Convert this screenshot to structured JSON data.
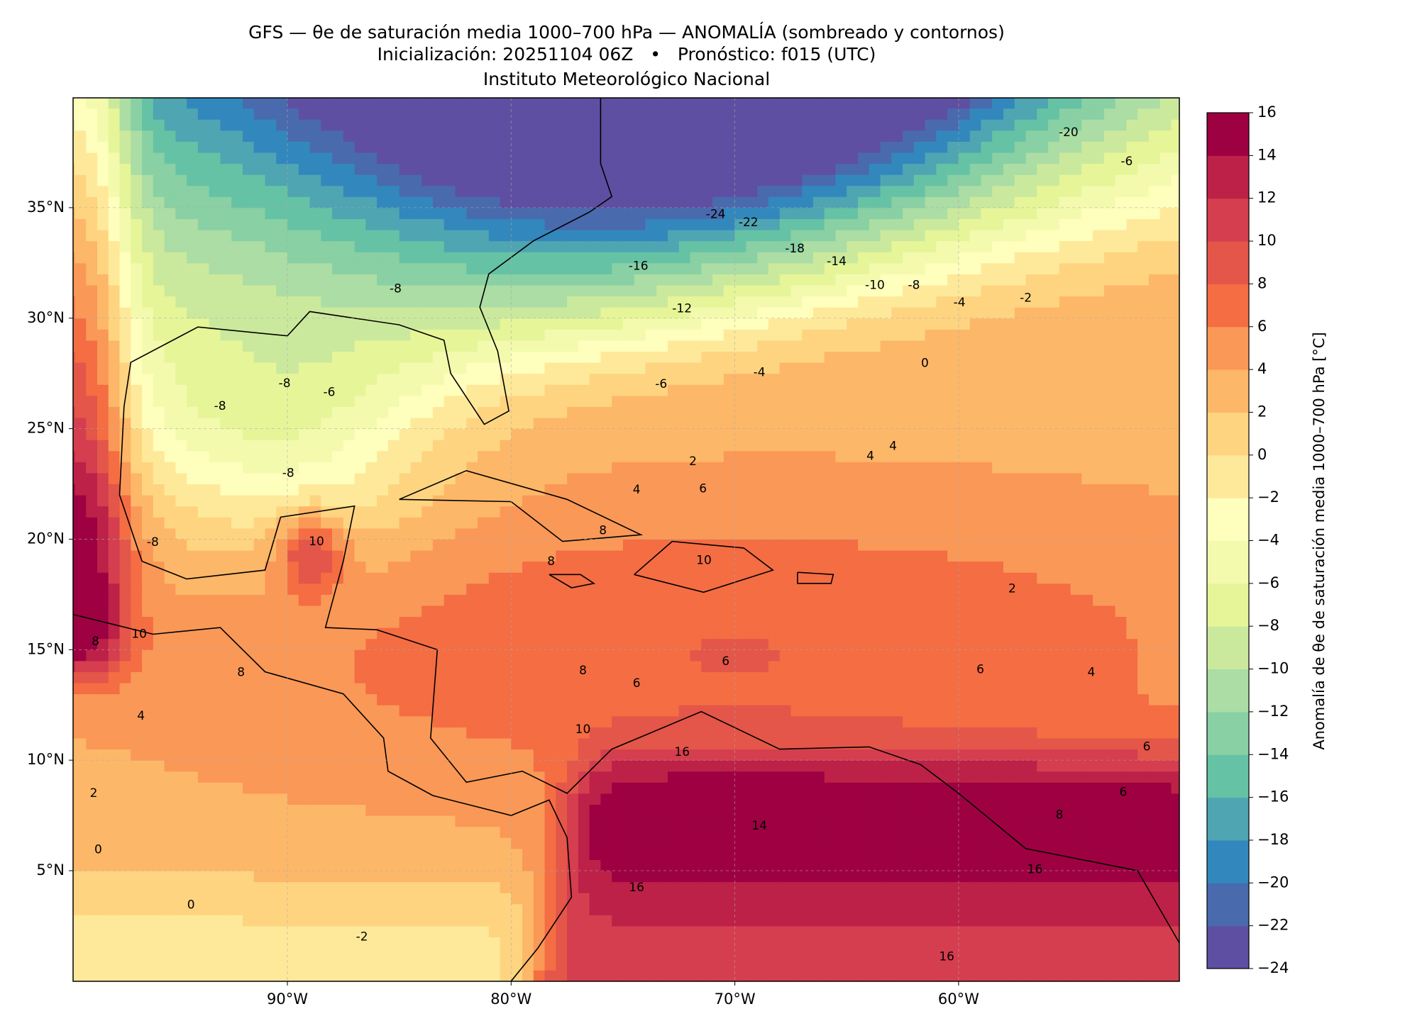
{
  "header": {
    "title": "GFS — θe de saturación media 1000–700 hPa — ANOMALÍA (sombreado y contornos)",
    "subtitle": "Inicialización: 20251104 06Z   •   Pronóstico: f015 (UTC)",
    "institute": "Instituto Meteorológico Nacional"
  },
  "map": {
    "lat_ticks": [
      {
        "value": 35,
        "label": "35°N"
      },
      {
        "value": 30,
        "label": "30°N"
      },
      {
        "value": 25,
        "label": "25°N"
      },
      {
        "value": 20,
        "label": "20°N"
      },
      {
        "value": 15,
        "label": "15°N"
      },
      {
        "value": 10,
        "label": "10°N"
      },
      {
        "value": 5,
        "label": "5°N"
      }
    ],
    "lon_ticks": [
      {
        "value": -90,
        "label": "90°W"
      },
      {
        "value": -80,
        "label": "80°W"
      },
      {
        "value": -70,
        "label": "70°W"
      },
      {
        "value": -60,
        "label": "60°W"
      }
    ],
    "contour_labels": [
      -24,
      -22,
      -20,
      -18,
      -16,
      -14,
      -12,
      -10,
      -8,
      -8,
      -6,
      -4,
      -2,
      0,
      -4,
      -6,
      -8,
      -6,
      -8,
      -8,
      -8,
      2,
      4,
      6,
      4,
      4,
      8,
      10,
      8,
      10,
      8,
      10,
      8,
      6,
      6,
      8,
      10,
      16,
      14,
      16,
      16,
      16,
      6,
      8,
      0,
      -2,
      4,
      2,
      0,
      2,
      6,
      4,
      6
    ]
  },
  "colorbar": {
    "label": "Anomalía de θe de saturación media 1000–700 hPa [°C]",
    "range": [
      -24,
      16
    ],
    "ticks": [
      {
        "value": -24,
        "label": "−24"
      },
      {
        "value": -22,
        "label": "−22"
      },
      {
        "value": -20,
        "label": "−20"
      },
      {
        "value": -18,
        "label": "−18"
      },
      {
        "value": -16,
        "label": "−16"
      },
      {
        "value": -14,
        "label": "−14"
      },
      {
        "value": -12,
        "label": "−12"
      },
      {
        "value": -10,
        "label": "−10"
      },
      {
        "value": -8,
        "label": "−8"
      },
      {
        "value": -6,
        "label": "−6"
      },
      {
        "value": -4,
        "label": "−4"
      },
      {
        "value": -2,
        "label": "−2"
      },
      0,
      2,
      4,
      6,
      8,
      10,
      12,
      14,
      16
    ],
    "colors": [
      "#5e4fa2",
      "#4a6aae",
      "#3288bd",
      "#4fa5b1",
      "#66c2a5",
      "#89d0a4",
      "#abdda4",
      "#cbe99d",
      "#e6f598",
      "#f3faad",
      "#fefebd",
      "#fee99a",
      "#fed481",
      "#fdb768",
      "#fa9857",
      "#f46d43",
      "#e35649",
      "#d53e4f",
      "#bd2148",
      "#9e0142"
    ]
  }
}
